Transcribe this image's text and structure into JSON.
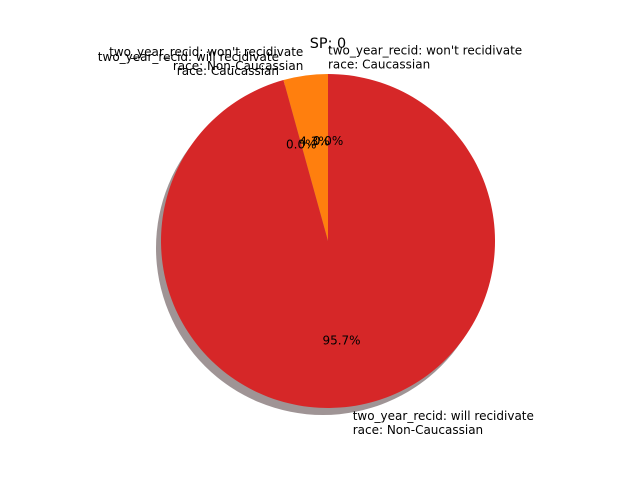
{
  "chart_data": {
    "type": "pie",
    "title": "SP: 0",
    "shadow": true,
    "start_angle_deg": 90,
    "counterclock": true,
    "slices": [
      {
        "label_line1": "two_year_recid: won't recidivate",
        "label_line2": "race: Caucassian",
        "value": 0.0,
        "pct_label": "0.0%",
        "color": "#1f77b4"
      },
      {
        "label_line1": "two_year_recid: won't recidivate",
        "label_line2": "race: Non-Caucassian",
        "value": 4.3,
        "pct_label": "4.3%",
        "color": "#ff7f0e"
      },
      {
        "label_line1": "two_year_recid: will recidivate",
        "label_line2": "race: Caucassian",
        "value": 0.0,
        "pct_label": "0.0%",
        "color": "#2ca02c"
      },
      {
        "label_line1": "two_year_recid: will recidivate",
        "label_line2": "race: Non-Caucassian",
        "value": 95.7,
        "pct_label": "95.7%",
        "color": "#d62728"
      }
    ]
  }
}
